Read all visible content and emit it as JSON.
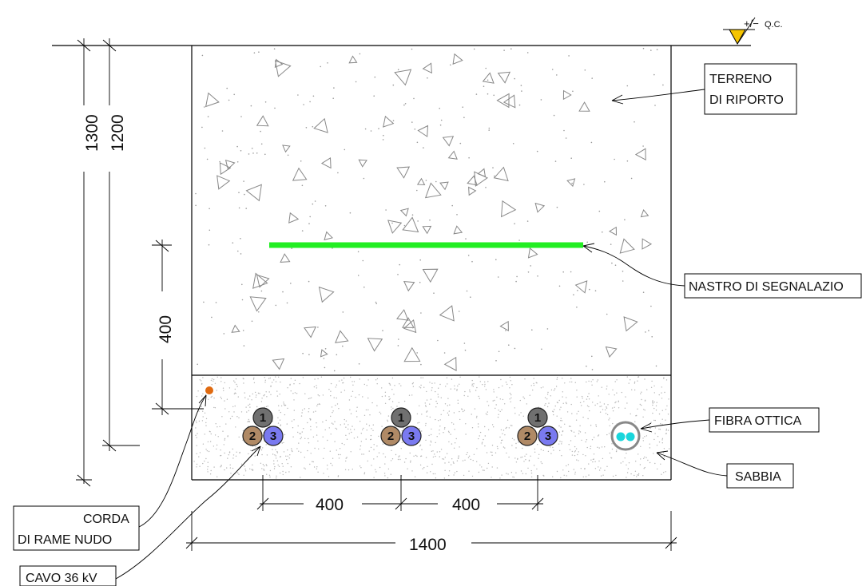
{
  "level_marker": {
    "tolerance": "+/−",
    "label": "Q.C."
  },
  "dimensions": {
    "depth_total": "1300",
    "depth_cable": "1200",
    "tape_depth": "400",
    "spacing_1": "400",
    "spacing_2": "400",
    "trench_width": "1400"
  },
  "labels": {
    "terreno_line1": "TERRENO",
    "terreno_line2": "DI RIPORTO",
    "nastro": "NASTRO DI SEGNALAZIO",
    "fibra": "FIBRA OTTICA",
    "sabbia": "SABBIA",
    "corda_line1": "CORDA",
    "corda_line2": "DI RAME NUDO",
    "cavo": "CAVO 36 kV"
  },
  "cable_numbers": [
    "1",
    "2",
    "3"
  ],
  "colors": {
    "tape": "#22ee22",
    "phase_1": "#707070",
    "phase_2": "#b08a66",
    "phase_3": "#7a7af0",
    "copper_rope": "#e06a10",
    "fiber": "#19d6dc",
    "level_marker": "#f5c400"
  }
}
